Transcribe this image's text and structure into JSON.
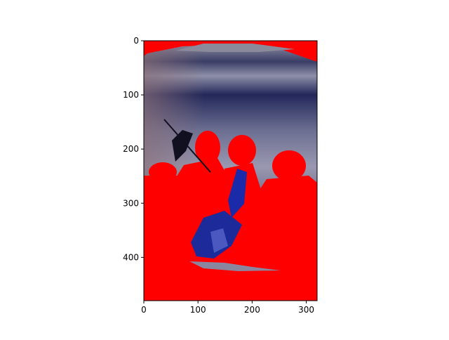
{
  "chart_data": {
    "type": "image",
    "xlim": [
      0,
      320
    ],
    "ylim": [
      480,
      0
    ],
    "xticks": [
      0,
      100,
      200,
      300
    ],
    "yticks": [
      0,
      100,
      200,
      300,
      400
    ]
  }
}
